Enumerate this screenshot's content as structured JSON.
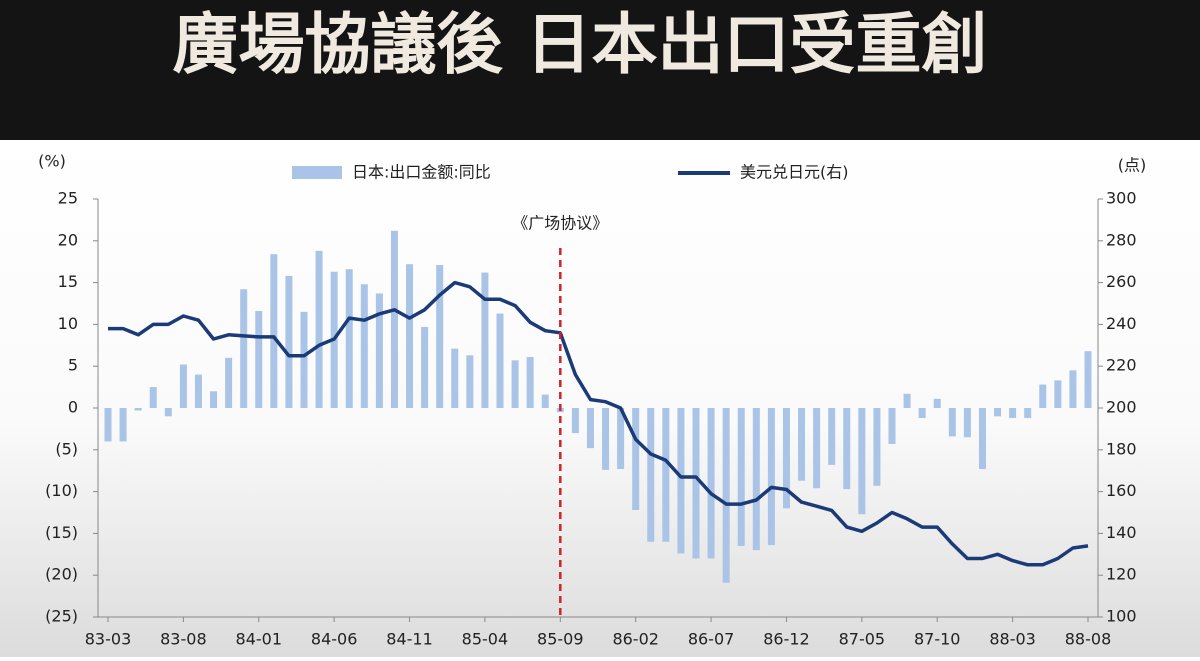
{
  "chart_data": {
    "type": "bar_line",
    "title": "廣場協議後 日本出口受重創",
    "y_label": "(%)",
    "y2_label": "(点)",
    "annotation": "《广场协议》",
    "categories": [
      "83-03",
      null,
      null,
      null,
      null,
      "83-08",
      null,
      null,
      null,
      null,
      "84-01",
      null,
      null,
      null,
      null,
      "84-06",
      null,
      null,
      null,
      null,
      "84-11",
      null,
      null,
      null,
      null,
      "85-04",
      null,
      null,
      null,
      null,
      "85-09",
      null,
      null,
      null,
      null,
      "86-02",
      null,
      null,
      null,
      null,
      "86-07",
      null,
      null,
      null,
      null,
      "86-12",
      null,
      null,
      null,
      null,
      "87-05",
      null,
      null,
      null,
      null,
      "87-10",
      null,
      null,
      null,
      null,
      "88-03",
      null,
      null,
      null,
      null,
      "88-08"
    ],
    "series": [
      {
        "name": "日本:出口金额:同比",
        "type": "bar",
        "color": "#a9c4e6",
        "values": [
          -4,
          -4,
          -0.3,
          2.5,
          -1,
          5.2,
          4,
          2,
          6,
          14.2,
          11.6,
          18.4,
          15.8,
          11.5,
          18.8,
          16.3,
          16.6,
          14.8,
          13.7,
          21.2,
          17.2,
          9.7,
          17.1,
          7.1,
          6.3,
          16.2,
          11.3,
          5.7,
          6.1,
          1.6,
          -0.5,
          -3,
          -4.8,
          -7.4,
          -7.3,
          -12.2,
          -16,
          -16,
          -17.4,
          -18,
          -18,
          -20.9,
          -16.5,
          -17,
          -16.4,
          -12,
          -8.7,
          -9.6,
          -6.8,
          -9.7,
          -12.7,
          -9.3,
          -4.3,
          1.7,
          -1.2,
          1.1,
          -3.4,
          -3.5,
          -7.3,
          -1,
          -1.2,
          -1.2,
          2.8,
          3.3,
          4.5,
          6.8
        ]
      },
      {
        "name": "美元兑日元(右)",
        "type": "line",
        "axis": "y2",
        "color": "#1b3a78",
        "values": [
          238,
          238,
          235,
          240,
          240,
          244,
          242,
          233,
          235,
          234.5,
          234,
          234,
          225,
          225,
          230,
          233,
          243,
          242,
          245,
          247,
          243,
          247,
          254,
          260,
          258,
          252,
          252,
          249,
          241,
          237,
          236,
          216,
          204,
          203,
          200,
          185,
          178,
          175,
          167,
          167,
          159,
          154,
          154,
          156,
          162,
          161,
          155,
          153,
          151,
          143,
          141,
          145,
          150,
          147,
          143,
          143,
          135,
          128,
          128,
          130,
          127,
          125,
          125,
          128,
          133,
          134
        ]
      }
    ],
    "ylim": [
      -25,
      25
    ],
    "yticks": [
      {
        "value": -25,
        "label": "(25)"
      },
      {
        "value": -20,
        "label": "(20)"
      },
      {
        "value": -15,
        "label": "(15)"
      },
      {
        "value": -10,
        "label": "(10)"
      },
      {
        "value": -5,
        "label": "(5)"
      },
      0,
      5,
      10,
      15,
      20,
      25
    ],
    "y2lim": [
      100,
      300
    ],
    "y2ticks": [
      100,
      120,
      140,
      160,
      180,
      200,
      220,
      240,
      260,
      280,
      300
    ]
  }
}
